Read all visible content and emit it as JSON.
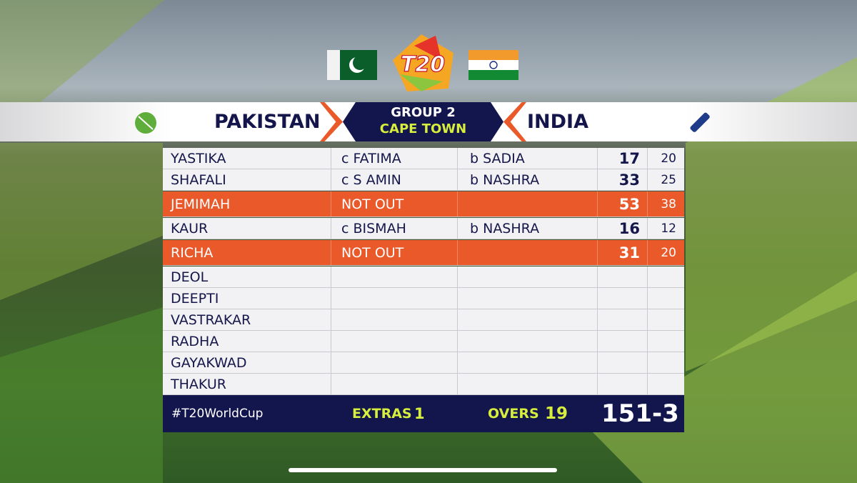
{
  "header": {
    "logo": "T20",
    "team1": "PAKISTAN",
    "group": "GROUP 2",
    "venue": "CAPE TOWN",
    "team2": "INDIA"
  },
  "batting": [
    {
      "name": "YASTIKA",
      "dismissal": "c FATIMA",
      "bowler": "b SADIA",
      "runs": 17,
      "balls": 20
    },
    {
      "name": "SHAFALI",
      "dismissal": "c S AMIN",
      "bowler": "b NASHRA",
      "runs": 33,
      "balls": 25
    },
    {
      "name": "JEMIMAH",
      "dismissal": "NOT OUT",
      "runs": 53,
      "balls": 38,
      "highlighted": true
    },
    {
      "name": "KAUR",
      "dismissal": "c BISMAH",
      "bowler": "b NASHRA",
      "runs": 16,
      "balls": 12
    },
    {
      "name": "RICHA",
      "dismissal": "NOT OUT",
      "runs": 31,
      "balls": 20,
      "highlighted": true
    },
    {
      "name": "DEOL"
    },
    {
      "name": "DEEPTI"
    },
    {
      "name": "VASTRAKAR"
    },
    {
      "name": "RADHA"
    },
    {
      "name": "GAYAKWAD"
    },
    {
      "name": "THAKUR"
    }
  ],
  "footer": {
    "hashtag": "#T20WorldCup",
    "extras_label": "EXTRAS",
    "extras": 1,
    "overs_label": "OVERS",
    "overs": 19,
    "score": "151-3"
  }
}
